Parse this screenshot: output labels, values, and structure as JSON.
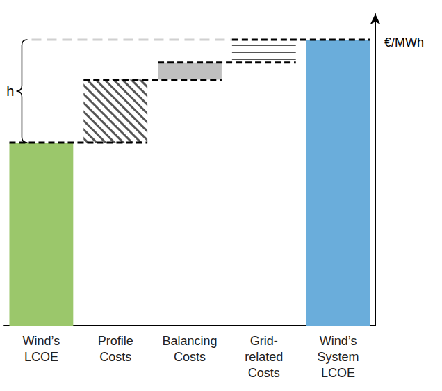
{
  "chart_data": {
    "type": "waterfall",
    "categories": [
      "Wind’s\nLCOE",
      "Profile\nCosts",
      "Balancing\nCosts",
      "Grid-\nrelated\nCosts",
      "Wind’s\nSystem\nLCOE"
    ],
    "values": [
      64,
      22,
      6,
      8,
      100
    ],
    "colors": [
      "#9bc76b",
      "#ffffff",
      "#c0c0c0",
      "#ffffff",
      "#6aaddb"
    ],
    "y_label": "€/MWh",
    "annotation": "h",
    "ylim": [
      0,
      109
    ],
    "yticks": [],
    "tick_labels": "x",
    "grid": false
  }
}
